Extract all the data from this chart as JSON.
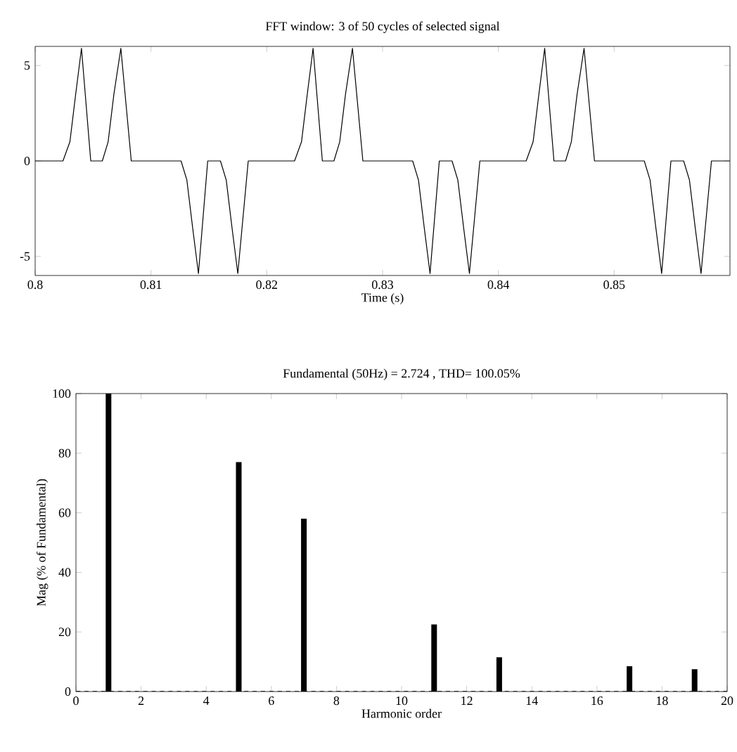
{
  "chart_data": [
    {
      "type": "line",
      "title": "FFT window: 3 of 50 cycles of selected signal",
      "xlabel": "Time (s)",
      "color": "#000000",
      "xlim": [
        0.8,
        0.86
      ],
      "ylim": [
        -6,
        6
      ],
      "xticks": [
        0.8,
        0.81,
        0.82,
        0.83,
        0.84,
        0.85
      ],
      "yticks": [
        -5,
        0,
        5
      ],
      "x": [
        0.8,
        0.8024,
        0.803,
        0.8035,
        0.804,
        0.8048,
        0.8058,
        0.8063,
        0.8068,
        0.8074,
        0.8083,
        0.8126,
        0.8131,
        0.8136,
        0.8141,
        0.8149,
        0.816,
        0.8165,
        0.817,
        0.8175,
        0.8184,
        0.8224,
        0.823,
        0.8235,
        0.824,
        0.8248,
        0.8258,
        0.8263,
        0.8268,
        0.8274,
        0.8283,
        0.8326,
        0.8331,
        0.8336,
        0.8341,
        0.8349,
        0.836,
        0.8365,
        0.837,
        0.8375,
        0.8384,
        0.8424,
        0.843,
        0.8435,
        0.844,
        0.8448,
        0.8458,
        0.8463,
        0.8468,
        0.8474,
        0.8483,
        0.8526,
        0.8531,
        0.8536,
        0.8541,
        0.8549,
        0.856,
        0.8565,
        0.857,
        0.8575,
        0.8584,
        0.86
      ],
      "values": [
        0,
        0,
        1,
        3.5,
        5.9,
        0,
        0,
        1,
        3.5,
        5.9,
        0,
        0,
        -1,
        -3.5,
        -5.9,
        0,
        0,
        -1,
        -3.5,
        -5.9,
        0,
        0,
        1,
        3.5,
        5.9,
        0,
        0,
        1,
        3.5,
        5.9,
        0,
        0,
        -1,
        -3.5,
        -5.9,
        0,
        0,
        -1,
        -3.5,
        -5.9,
        0,
        0,
        1,
        3.5,
        5.9,
        0,
        0,
        1,
        3.5,
        5.9,
        0,
        0,
        -1,
        -3.5,
        -5.9,
        0,
        0,
        -1,
        -3.5,
        -5.9,
        0,
        0
      ]
    },
    {
      "type": "bar",
      "title": "Fundamental (50Hz) = 2.724 , THD= 100.05%",
      "xlabel": "Harmonic order",
      "ylabel": "Mag (% of Fundamental)",
      "color": "#000000",
      "xlim": [
        0,
        20
      ],
      "ylim": [
        0,
        100
      ],
      "xticks": [
        0,
        2,
        4,
        6,
        8,
        10,
        12,
        14,
        16,
        18,
        20
      ],
      "yticks": [
        0,
        20,
        40,
        60,
        80,
        100
      ],
      "x": [
        1,
        5,
        7,
        11,
        13,
        17,
        19
      ],
      "values": [
        100,
        77,
        58,
        22.5,
        11.5,
        8.5,
        7.5
      ],
      "ref_lines": [
        {
          "axis": "y",
          "value": 0,
          "line_style": "dashed"
        }
      ]
    }
  ]
}
